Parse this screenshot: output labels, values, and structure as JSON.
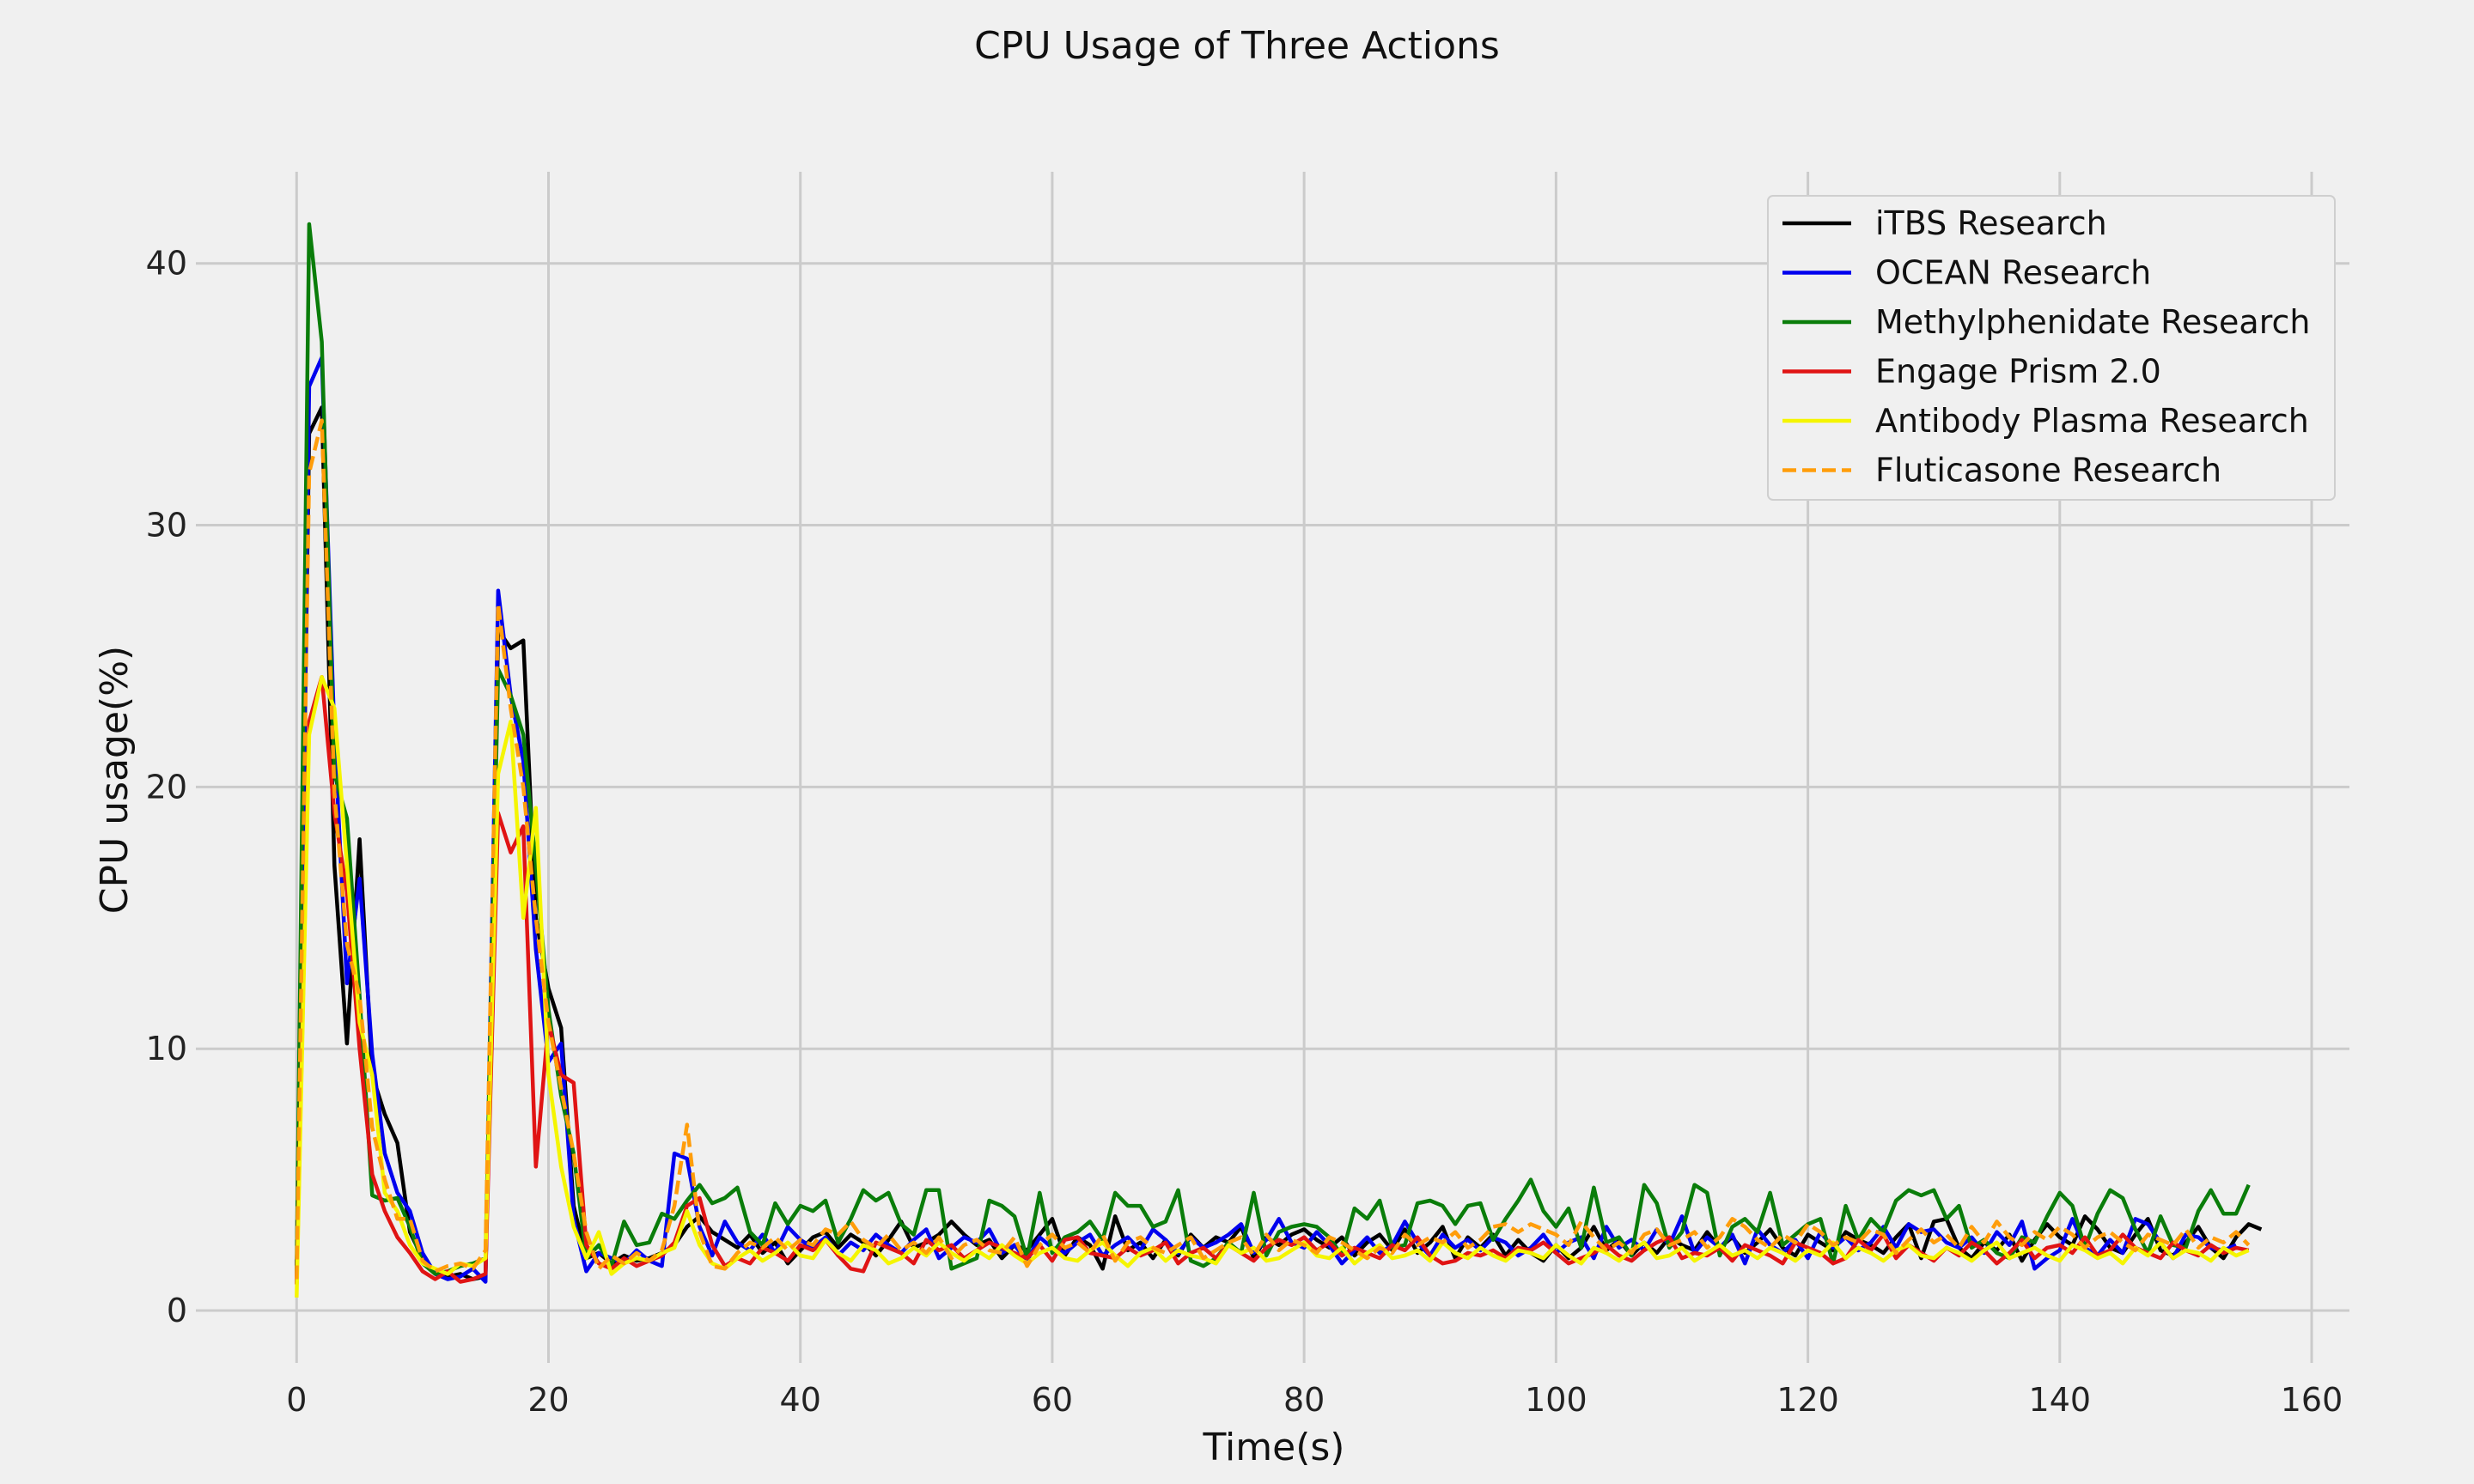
{
  "chart_data": {
    "type": "line",
    "title": "CPU Usage of Three Actions",
    "xlabel": "Time(s)",
    "ylabel": "CPU usage(%)",
    "xlim": [
      -8,
      163
    ],
    "ylim": [
      -2,
      43.5
    ],
    "xticks": [
      0,
      20,
      40,
      60,
      80,
      100,
      120,
      140,
      160
    ],
    "yticks": [
      0,
      10,
      20,
      30,
      40
    ],
    "grid": true,
    "legend_position": "top-right",
    "x_start": 0,
    "x_step": 1,
    "series": [
      {
        "name": "iTBS Research",
        "color": "#000000",
        "dashed": false,
        "values": [
          1.2,
          33.5,
          34.5,
          17.0,
          10.2,
          18.0,
          9.0,
          7.5,
          6.4,
          3.0,
          2.0,
          1.5,
          1.3,
          1.4,
          1.2,
          1.3,
          26.0,
          25.3,
          25.6,
          15.0,
          12.3,
          10.8,
          4.0,
          2.0,
          2.2,
          1.8,
          2.1,
          1.9,
          2.0,
          2.2,
          2.5,
          3.2,
          3.6,
          3.0,
          2.7,
          2.4,
          2.9,
          2.2,
          2.6,
          1.8,
          2.3,
          2.8,
          3.0,
          2.4,
          2.9,
          2.6,
          2.1,
          2.7,
          3.4,
          2.4,
          2.6,
          2.9,
          3.4,
          2.9,
          2.5,
          2.7,
          2.0,
          2.5,
          2.3,
          2.9,
          3.5,
          2.1,
          2.8,
          2.5,
          1.6,
          3.6,
          2.3,
          2.6,
          2.0,
          2.7,
          2.1,
          2.9,
          2.4,
          2.8,
          2.6,
          3.2,
          2.0,
          2.8,
          2.5,
          2.9,
          3.1,
          2.7,
          2.4,
          2.8,
          2.1,
          2.6,
          2.9,
          2.3,
          3.1,
          2.2,
          2.6,
          3.2,
          2.0,
          2.8,
          2.4,
          2.9,
          2.1,
          2.7,
          2.2,
          1.9,
          2.5,
          2.0,
          2.4,
          3.2,
          2.3,
          2.7,
          2.1,
          2.6,
          2.2,
          2.8,
          2.5,
          2.3,
          3.0,
          2.4,
          2.8,
          2.2,
          2.6,
          3.1,
          2.4,
          2.1,
          2.9,
          2.6,
          2.3,
          3.0,
          2.7,
          2.5,
          2.2,
          2.8,
          3.3,
          2.0,
          3.4,
          3.5,
          2.4,
          2.0,
          2.6,
          2.3,
          2.9,
          1.9,
          2.7,
          3.3,
          2.8,
          2.5,
          3.6,
          3.1,
          2.4,
          2.2,
          2.9,
          3.5,
          2.3,
          2.1,
          2.6,
          3.2,
          2.4,
          2.0,
          2.8,
          3.3,
          3.1
        ]
      },
      {
        "name": "OCEAN Research",
        "color": "#0000ee",
        "dashed": false,
        "values": [
          1.0,
          35.3,
          36.4,
          22.0,
          12.5,
          16.5,
          9.8,
          6.0,
          4.5,
          3.8,
          2.2,
          1.4,
          1.2,
          1.3,
          1.6,
          1.1,
          27.5,
          23.5,
          21.0,
          13.8,
          9.5,
          10.2,
          3.5,
          1.5,
          2.2,
          2.0,
          1.8,
          2.3,
          1.9,
          1.7,
          6.0,
          5.8,
          3.2,
          2.1,
          3.4,
          2.6,
          2.3,
          2.9,
          2.2,
          3.2,
          2.7,
          2.4,
          2.8,
          2.1,
          2.6,
          2.3,
          2.9,
          2.5,
          2.2,
          2.7,
          3.1,
          2.0,
          2.4,
          2.8,
          2.6,
          3.1,
          2.2,
          2.5,
          1.9,
          2.8,
          2.4,
          2.2,
          2.6,
          2.9,
          2.1,
          2.5,
          2.8,
          2.3,
          3.1,
          2.7,
          2.2,
          2.8,
          2.4,
          2.6,
          2.9,
          3.3,
          2.2,
          2.7,
          3.5,
          2.6,
          2.4,
          3.0,
          2.5,
          1.8,
          2.3,
          2.8,
          2.2,
          2.5,
          3.4,
          2.6,
          2.1,
          2.9,
          2.4,
          2.7,
          2.3,
          2.8,
          2.6,
          2.1,
          2.4,
          2.9,
          2.2,
          2.6,
          2.8,
          2.0,
          3.2,
          2.4,
          2.7,
          2.3,
          3.1,
          2.5,
          3.6,
          2.2,
          2.8,
          2.4,
          2.9,
          1.8,
          3.1,
          2.5,
          2.2,
          2.7,
          2.0,
          3.0,
          2.4,
          2.8,
          2.3,
          2.6,
          3.2,
          2.4,
          3.3,
          3.0,
          3.1,
          2.6,
          2.4,
          2.8,
          2.2,
          3.0,
          2.5,
          3.4,
          1.6,
          2.0,
          2.3,
          3.5,
          2.4,
          2.1,
          2.7,
          2.2,
          3.5,
          3.3,
          2.6,
          2.0,
          2.9,
          2.8,
          2.4,
          2.3,
          2.5
        ]
      },
      {
        "name": "Methylphenidate Research",
        "color": "#0a7d0a",
        "dashed": false,
        "values": [
          1.5,
          41.5,
          37.0,
          20.5,
          18.8,
          12.0,
          4.4,
          4.2,
          4.3,
          3.2,
          1.8,
          1.4,
          1.5,
          1.7,
          1.8,
          2.0,
          24.5,
          23.5,
          22.0,
          17.0,
          11.5,
          8.2,
          6.0,
          2.0,
          2.5,
          1.7,
          3.4,
          2.5,
          2.6,
          3.7,
          3.5,
          4.2,
          4.8,
          4.1,
          4.3,
          4.7,
          3.0,
          2.5,
          4.1,
          3.3,
          4.0,
          3.8,
          4.2,
          2.6,
          3.5,
          4.6,
          4.2,
          4.5,
          3.3,
          2.9,
          4.6,
          4.6,
          1.6,
          1.8,
          2.0,
          4.2,
          4.0,
          3.6,
          2.0,
          4.5,
          2.2,
          2.8,
          3.0,
          3.4,
          2.7,
          4.5,
          4.0,
          4.0,
          3.2,
          3.4,
          4.6,
          1.9,
          1.7,
          2.0,
          2.6,
          2.2,
          4.5,
          2.1,
          3.0,
          3.2,
          3.3,
          3.2,
          2.8,
          2.1,
          3.9,
          3.5,
          4.2,
          2.4,
          2.5,
          4.1,
          4.2,
          4.0,
          3.3,
          4.0,
          4.1,
          2.7,
          3.5,
          4.2,
          5.0,
          3.8,
          3.2,
          3.9,
          2.4,
          4.7,
          2.6,
          2.8,
          2.1,
          4.8,
          4.1,
          2.4,
          3.0,
          4.8,
          4.5,
          2.1,
          3.2,
          3.5,
          3.0,
          4.5,
          2.5,
          2.9,
          3.3,
          3.5,
          1.8,
          4.0,
          2.7,
          3.5,
          3.0,
          4.2,
          4.6,
          4.4,
          4.6,
          3.5,
          4.0,
          2.4,
          2.7,
          2.2,
          2.0,
          2.8,
          2.6,
          3.6,
          4.5,
          4.0,
          2.4,
          3.7,
          4.6,
          4.3,
          3.1,
          2.2,
          3.6,
          2.5,
          2.4,
          3.8,
          4.6,
          3.7,
          3.7,
          4.8
        ]
      },
      {
        "name": "Engage Prism 2.0",
        "color": "#e01414",
        "dashed": false,
        "values": [
          1.0,
          22.5,
          24.2,
          19.0,
          16.0,
          10.0,
          5.2,
          3.8,
          2.8,
          2.2,
          1.5,
          1.2,
          1.5,
          1.1,
          1.2,
          1.4,
          19.0,
          17.5,
          18.5,
          5.5,
          11.0,
          9.0,
          8.7,
          2.5,
          1.8,
          1.6,
          2.0,
          1.7,
          1.9,
          2.1,
          2.6,
          4.0,
          4.3,
          2.5,
          1.7,
          2.0,
          1.8,
          2.4,
          2.2,
          1.9,
          2.5,
          2.3,
          2.7,
          2.1,
          1.6,
          1.5,
          2.6,
          2.4,
          2.2,
          1.8,
          2.7,
          2.3,
          2.5,
          2.0,
          2.3,
          2.6,
          2.4,
          2.2,
          2.0,
          2.5,
          1.9,
          2.7,
          2.8,
          2.2,
          2.1,
          2.0,
          2.4,
          2.1,
          2.3,
          2.6,
          1.8,
          2.2,
          2.4,
          2.0,
          2.5,
          2.2,
          1.9,
          2.4,
          2.7,
          2.5,
          2.8,
          2.3,
          2.6,
          2.1,
          2.4,
          2.2,
          2.0,
          2.5,
          2.3,
          2.8,
          2.1,
          1.8,
          1.9,
          2.2,
          2.1,
          2.3,
          2.0,
          2.4,
          2.3,
          2.6,
          2.2,
          1.8,
          2.0,
          2.2,
          2.5,
          2.1,
          1.9,
          2.3,
          2.6,
          2.8,
          2.0,
          2.2,
          2.1,
          2.4,
          1.9,
          2.5,
          2.3,
          2.1,
          1.8,
          2.6,
          2.4,
          2.2,
          1.8,
          2.0,
          2.7,
          2.3,
          2.9,
          2.0,
          2.5,
          2.2,
          1.9,
          2.4,
          2.1,
          2.6,
          2.3,
          1.8,
          2.2,
          2.7,
          2.0,
          2.4,
          2.5,
          2.2,
          2.8,
          2.1,
          2.3,
          2.9,
          2.4,
          2.2,
          2.0,
          2.6,
          2.3,
          2.1,
          2.5,
          2.2,
          2.4,
          2.3
        ]
      },
      {
        "name": "Antibody Plasma Research",
        "color": "#f5f500",
        "dashed": false,
        "values": [
          0.5,
          22.0,
          24.2,
          23.0,
          17.0,
          11.0,
          9.0,
          4.5,
          3.8,
          2.5,
          1.8,
          1.6,
          1.4,
          1.8,
          1.7,
          2.0,
          20.5,
          22.5,
          15.0,
          19.2,
          9.0,
          5.5,
          3.2,
          2.0,
          3.0,
          1.4,
          1.8,
          2.0,
          1.9,
          2.2,
          2.4,
          3.8,
          2.5,
          1.8,
          1.6,
          2.0,
          2.3,
          1.9,
          2.2,
          2.6,
          2.1,
          2.0,
          2.7,
          2.2,
          1.9,
          2.5,
          2.3,
          1.8,
          2.0,
          2.4,
          2.1,
          2.6,
          2.2,
          1.9,
          2.3,
          2.0,
          2.5,
          2.1,
          1.8,
          2.2,
          2.4,
          2.0,
          1.9,
          2.3,
          2.6,
          2.1,
          1.7,
          2.2,
          2.4,
          1.9,
          2.3,
          2.1,
          2.0,
          1.8,
          2.5,
          2.2,
          2.4,
          1.9,
          2.0,
          2.3,
          2.6,
          2.1,
          2.0,
          2.4,
          1.8,
          2.2,
          2.5,
          2.0,
          2.1,
          2.3,
          1.9,
          2.6,
          2.2,
          2.0,
          2.4,
          2.1,
          1.9,
          2.3,
          2.2,
          2.0,
          2.5,
          2.1,
          1.8,
          2.4,
          2.2,
          1.9,
          2.3,
          2.6,
          2.0,
          2.1,
          2.4,
          1.9,
          2.2,
          2.5,
          2.1,
          2.3,
          2.0,
          2.4,
          2.2,
          1.9,
          2.3,
          2.1,
          2.6,
          2.0,
          2.4,
          2.2,
          1.9,
          2.3,
          2.5,
          2.1,
          2.0,
          2.4,
          2.2,
          1.9,
          2.3,
          2.6,
          2.0,
          2.2,
          2.4,
          2.1,
          1.9,
          2.5,
          2.3,
          2.0,
          2.2,
          1.8,
          2.4,
          2.1,
          2.6,
          2.0,
          2.3,
          2.2,
          1.9,
          2.4,
          2.1,
          2.3
        ]
      },
      {
        "name": "Fluticasone Research",
        "color": "#ff9d0a",
        "dashed": true,
        "values": [
          1.2,
          32.0,
          34.0,
          19.8,
          14.0,
          12.0,
          7.0,
          5.0,
          3.5,
          3.5,
          1.9,
          1.5,
          1.7,
          1.8,
          1.6,
          2.3,
          27.0,
          23.0,
          20.0,
          15.0,
          11.0,
          8.5,
          6.0,
          3.0,
          1.6,
          2.1,
          1.8,
          2.2,
          1.9,
          2.3,
          4.0,
          7.1,
          3.0,
          1.7,
          1.6,
          2.2,
          2.6,
          2.4,
          2.8,
          2.3,
          2.7,
          2.5,
          3.1,
          2.9,
          3.4,
          2.7,
          2.4,
          2.9,
          2.3,
          2.6,
          2.2,
          2.8,
          2.0,
          2.5,
          2.7,
          2.3,
          2.2,
          2.8,
          1.7,
          2.5,
          2.9,
          2.4,
          2.6,
          2.2,
          2.9,
          1.9,
          2.6,
          2.8,
          2.4,
          2.2,
          2.5,
          2.8,
          2.0,
          2.3,
          2.6,
          2.8,
          2.1,
          2.9,
          2.3,
          2.7,
          2.5,
          2.2,
          2.8,
          2.6,
          2.3,
          2.0,
          2.4,
          2.2,
          2.9,
          2.5,
          2.8,
          2.6,
          3.0,
          2.4,
          2.7,
          3.2,
          3.3,
          3.0,
          3.3,
          3.1,
          2.9,
          2.5,
          3.4,
          2.8,
          2.3,
          2.6,
          2.2,
          2.9,
          3.1,
          2.5,
          2.7,
          3.0,
          2.4,
          2.8,
          3.5,
          3.2,
          2.7,
          2.4,
          2.9,
          2.6,
          3.3,
          3.0,
          2.5,
          2.8,
          2.6,
          3.1,
          2.9,
          2.2,
          2.7,
          3.1,
          2.6,
          2.9,
          2.4,
          3.2,
          2.6,
          3.4,
          2.8,
          2.5,
          3.0,
          2.7,
          3.2,
          2.9,
          2.4,
          2.8,
          3.0,
          2.6,
          2.3,
          2.9,
          2.7,
          2.5,
          3.1,
          2.4,
          2.8,
          2.6,
          3.0,
          2.5
        ]
      }
    ]
  }
}
